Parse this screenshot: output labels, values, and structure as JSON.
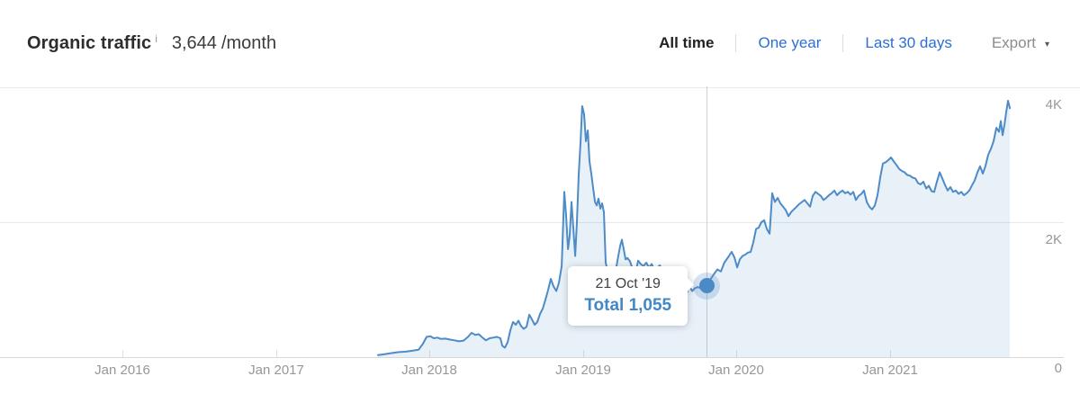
{
  "header": {
    "title": "Organic traffic",
    "info_glyph": "i",
    "value": "3,644",
    "unit": "/month",
    "tabs": [
      {
        "label": "All time",
        "active": true
      },
      {
        "label": "One year",
        "active": false
      },
      {
        "label": "Last 30 days",
        "active": false
      }
    ],
    "export_label": "Export",
    "export_caret": "▾"
  },
  "colors": {
    "line": "#4e8cc7",
    "fill": "rgba(78,140,199,0.13)",
    "grid": "#e9e9e9",
    "axis": "#d8d8d8",
    "axis_text": "#979797",
    "link": "#2b6fd4",
    "tooltip_value": "#4287c6"
  },
  "chart_data": {
    "type": "area",
    "title": "Organic traffic over time",
    "xlabel": "",
    "ylabel": "",
    "x_range": [
      2015.2,
      2021.95
    ],
    "y_range": [
      0,
      4000
    ],
    "grid": true,
    "legend": "none",
    "x_ticks": [
      {
        "label": "Jan 2016",
        "t": 2016
      },
      {
        "label": "Jan 2017",
        "t": 2017
      },
      {
        "label": "Jan 2018",
        "t": 2018
      },
      {
        "label": "Jan 2019",
        "t": 2019
      },
      {
        "label": "Jan 2020",
        "t": 2020
      },
      {
        "label": "Jan 2021",
        "t": 2021
      }
    ],
    "y_ticks": [
      {
        "label": "4K",
        "value": 4000
      },
      {
        "label": "2K",
        "value": 2000
      },
      {
        "label": "0",
        "value": 0
      }
    ],
    "marker": {
      "t": 2019.805,
      "value": 1055,
      "date_label": "21 Oct '19",
      "value_label": "Total 1,055"
    },
    "series": [
      {
        "name": "Organic traffic",
        "points": [
          [
            2017.665,
            30
          ],
          [
            2017.712,
            45
          ],
          [
            2017.753,
            60
          ],
          [
            2017.8,
            75
          ],
          [
            2017.841,
            80
          ],
          [
            2017.888,
            95
          ],
          [
            2017.929,
            110
          ],
          [
            2017.958,
            200
          ],
          [
            2017.981,
            300
          ],
          [
            2018.005,
            310
          ],
          [
            2018.028,
            280
          ],
          [
            2018.052,
            290
          ],
          [
            2018.075,
            270
          ],
          [
            2018.104,
            275
          ],
          [
            2018.134,
            260
          ],
          [
            2018.163,
            250
          ],
          [
            2018.192,
            235
          ],
          [
            2018.222,
            245
          ],
          [
            2018.251,
            300
          ],
          [
            2018.274,
            360
          ],
          [
            2018.298,
            330
          ],
          [
            2018.321,
            340
          ],
          [
            2018.345,
            290
          ],
          [
            2018.368,
            250
          ],
          [
            2018.392,
            280
          ],
          [
            2018.415,
            290
          ],
          [
            2018.439,
            300
          ],
          [
            2018.462,
            280
          ],
          [
            2018.474,
            170
          ],
          [
            2018.491,
            140
          ],
          [
            2018.509,
            220
          ],
          [
            2018.527,
            400
          ],
          [
            2018.544,
            520
          ],
          [
            2018.562,
            480
          ],
          [
            2018.579,
            540
          ],
          [
            2018.597,
            460
          ],
          [
            2018.614,
            420
          ],
          [
            2018.632,
            450
          ],
          [
            2018.65,
            630
          ],
          [
            2018.667,
            560
          ],
          [
            2018.685,
            480
          ],
          [
            2018.702,
            520
          ],
          [
            2018.72,
            640
          ],
          [
            2018.738,
            720
          ],
          [
            2018.755,
            850
          ],
          [
            2018.773,
            1000
          ],
          [
            2018.79,
            1160
          ],
          [
            2018.808,
            1050
          ],
          [
            2018.826,
            980
          ],
          [
            2018.843,
            1100
          ],
          [
            2018.861,
            1350
          ],
          [
            2018.878,
            2450
          ],
          [
            2018.89,
            2100
          ],
          [
            2018.902,
            1600
          ],
          [
            2018.913,
            1800
          ],
          [
            2018.925,
            2300
          ],
          [
            2018.937,
            1900
          ],
          [
            2018.949,
            1500
          ],
          [
            2018.96,
            2000
          ],
          [
            2018.972,
            2700
          ],
          [
            2018.984,
            3200
          ],
          [
            2018.995,
            3720
          ],
          [
            2019.007,
            3600
          ],
          [
            2019.019,
            3200
          ],
          [
            2019.031,
            3360
          ],
          [
            2019.042,
            2900
          ],
          [
            2019.054,
            2720
          ],
          [
            2019.066,
            2500
          ],
          [
            2019.078,
            2300
          ],
          [
            2019.089,
            2250
          ],
          [
            2019.101,
            2350
          ],
          [
            2019.113,
            2200
          ],
          [
            2019.124,
            2280
          ],
          [
            2019.136,
            2150
          ],
          [
            2019.148,
            1400
          ],
          [
            2019.16,
            1280
          ],
          [
            2019.171,
            1320
          ],
          [
            2019.183,
            1250
          ],
          [
            2019.195,
            1300
          ],
          [
            2019.206,
            1270
          ],
          [
            2019.218,
            1350
          ],
          [
            2019.23,
            1500
          ],
          [
            2019.242,
            1650
          ],
          [
            2019.253,
            1740
          ],
          [
            2019.265,
            1600
          ],
          [
            2019.277,
            1450
          ],
          [
            2019.289,
            1470
          ],
          [
            2019.306,
            1420
          ],
          [
            2019.324,
            1300
          ],
          [
            2019.335,
            1160
          ],
          [
            2019.347,
            1300
          ],
          [
            2019.359,
            1430
          ],
          [
            2019.376,
            1380
          ],
          [
            2019.394,
            1350
          ],
          [
            2019.412,
            1400
          ],
          [
            2019.429,
            1330
          ],
          [
            2019.447,
            1380
          ],
          [
            2019.464,
            1290
          ],
          [
            2019.482,
            1320
          ],
          [
            2019.5,
            1360
          ],
          [
            2019.517,
            1300
          ],
          [
            2019.535,
            1240
          ],
          [
            2019.552,
            1280
          ],
          [
            2019.57,
            1300
          ],
          [
            2019.588,
            1150
          ],
          [
            2019.605,
            1000
          ],
          [
            2019.623,
            950
          ],
          [
            2019.64,
            900
          ],
          [
            2019.658,
            870
          ],
          [
            2019.676,
            950
          ],
          [
            2019.693,
            1050
          ],
          [
            2019.711,
            980
          ],
          [
            2019.728,
            1020
          ],
          [
            2019.746,
            1040
          ],
          [
            2019.769,
            1020
          ],
          [
            2019.805,
            1055
          ],
          [
            2019.828,
            1150
          ],
          [
            2019.852,
            1230
          ],
          [
            2019.875,
            1300
          ],
          [
            2019.898,
            1270
          ],
          [
            2019.92,
            1400
          ],
          [
            2019.945,
            1480
          ],
          [
            2019.968,
            1560
          ],
          [
            2019.986,
            1480
          ],
          [
            2020.004,
            1330
          ],
          [
            2020.021,
            1450
          ],
          [
            2020.039,
            1500
          ],
          [
            2020.057,
            1520
          ],
          [
            2020.074,
            1550
          ],
          [
            2020.092,
            1560
          ],
          [
            2020.109,
            1700
          ],
          [
            2020.127,
            1900
          ],
          [
            2020.144,
            1920
          ],
          [
            2020.162,
            2000
          ],
          [
            2020.18,
            2030
          ],
          [
            2020.197,
            1900
          ],
          [
            2020.215,
            1830
          ],
          [
            2020.232,
            2430
          ],
          [
            2020.25,
            2300
          ],
          [
            2020.268,
            2360
          ],
          [
            2020.285,
            2280
          ],
          [
            2020.303,
            2230
          ],
          [
            2020.32,
            2180
          ],
          [
            2020.338,
            2090
          ],
          [
            2020.355,
            2150
          ],
          [
            2020.373,
            2190
          ],
          [
            2020.391,
            2230
          ],
          [
            2020.408,
            2270
          ],
          [
            2020.426,
            2300
          ],
          [
            2020.443,
            2330
          ],
          [
            2020.461,
            2280
          ],
          [
            2020.479,
            2230
          ],
          [
            2020.496,
            2390
          ],
          [
            2020.514,
            2450
          ],
          [
            2020.531,
            2420
          ],
          [
            2020.549,
            2390
          ],
          [
            2020.566,
            2330
          ],
          [
            2020.584,
            2360
          ],
          [
            2020.602,
            2400
          ],
          [
            2020.619,
            2430
          ],
          [
            2020.637,
            2470
          ],
          [
            2020.654,
            2400
          ],
          [
            2020.672,
            2440
          ],
          [
            2020.69,
            2470
          ],
          [
            2020.707,
            2430
          ],
          [
            2020.725,
            2450
          ],
          [
            2020.742,
            2410
          ],
          [
            2020.76,
            2450
          ],
          [
            2020.777,
            2330
          ],
          [
            2020.795,
            2390
          ],
          [
            2020.813,
            2420
          ],
          [
            2020.83,
            2470
          ],
          [
            2020.848,
            2300
          ],
          [
            2020.865,
            2230
          ],
          [
            2020.883,
            2190
          ],
          [
            2020.901,
            2250
          ],
          [
            2020.918,
            2400
          ],
          [
            2020.936,
            2670
          ],
          [
            2020.953,
            2870
          ],
          [
            2020.971,
            2890
          ],
          [
            2020.988,
            2920
          ],
          [
            2021.006,
            2960
          ],
          [
            2021.024,
            2900
          ],
          [
            2021.041,
            2850
          ],
          [
            2021.059,
            2790
          ],
          [
            2021.076,
            2760
          ],
          [
            2021.094,
            2740
          ],
          [
            2021.112,
            2700
          ],
          [
            2021.129,
            2690
          ],
          [
            2021.147,
            2660
          ],
          [
            2021.164,
            2650
          ],
          [
            2021.182,
            2580
          ],
          [
            2021.199,
            2560
          ],
          [
            2021.217,
            2600
          ],
          [
            2021.235,
            2500
          ],
          [
            2021.252,
            2540
          ],
          [
            2021.27,
            2460
          ],
          [
            2021.287,
            2450
          ],
          [
            2021.305,
            2600
          ],
          [
            2021.323,
            2740
          ],
          [
            2021.34,
            2650
          ],
          [
            2021.358,
            2550
          ],
          [
            2021.375,
            2470
          ],
          [
            2021.393,
            2520
          ],
          [
            2021.41,
            2450
          ],
          [
            2021.428,
            2470
          ],
          [
            2021.446,
            2420
          ],
          [
            2021.463,
            2450
          ],
          [
            2021.481,
            2400
          ],
          [
            2021.498,
            2430
          ],
          [
            2021.516,
            2470
          ],
          [
            2021.534,
            2550
          ],
          [
            2021.551,
            2620
          ],
          [
            2021.569,
            2740
          ],
          [
            2021.586,
            2830
          ],
          [
            2021.604,
            2720
          ],
          [
            2021.621,
            2830
          ],
          [
            2021.639,
            3000
          ],
          [
            2021.657,
            3090
          ],
          [
            2021.674,
            3200
          ],
          [
            2021.692,
            3400
          ],
          [
            2021.709,
            3340
          ],
          [
            2021.721,
            3500
          ],
          [
            2021.733,
            3290
          ],
          [
            2021.745,
            3450
          ],
          [
            2021.756,
            3630
          ],
          [
            2021.768,
            3800
          ],
          [
            2021.78,
            3690
          ]
        ]
      }
    ]
  }
}
